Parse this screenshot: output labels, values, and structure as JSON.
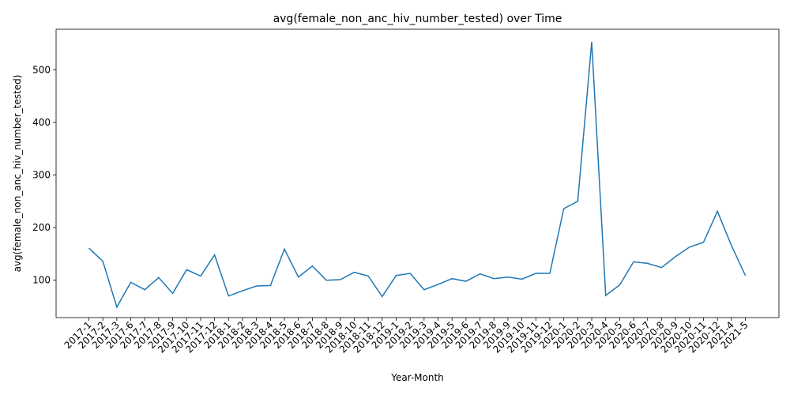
{
  "chart_data": {
    "type": "line",
    "title": "avg(female_non_anc_hiv_number_tested) over Time",
    "xlabel": "Year-Month",
    "ylabel": "avg(female_non_anc_hiv_number_tested)",
    "ylim": [
      29,
      577
    ],
    "yticks": [
      100,
      200,
      300,
      400,
      500
    ],
    "grid": false,
    "legend": "none",
    "line_color": "#1f77b4",
    "categories": [
      "2017-1",
      "2017-2",
      "2017-3",
      "2017-6",
      "2017-7",
      "2017-8",
      "2017-9",
      "2017-10",
      "2017-11",
      "2017-12",
      "2018-1",
      "2018-2",
      "2018-3",
      "2018-4",
      "2018-5",
      "2018-6",
      "2018-7",
      "2018-8",
      "2018-9",
      "2018-10",
      "2018-11",
      "2018-12",
      "2019-1",
      "2019-2",
      "2019-3",
      "2019-4",
      "2019-5",
      "2019-6",
      "2019-7",
      "2019-8",
      "2019-9",
      "2019-10",
      "2019-11",
      "2019-12",
      "2020-1",
      "2020-2",
      "2020-3",
      "2020-4",
      "2020-5",
      "2020-6",
      "2020-7",
      "2020-8",
      "2020-9",
      "2020-10",
      "2020-11",
      "2020-12",
      "2021-4",
      "2021-5"
    ],
    "series": [
      {
        "values": [
          161,
          136,
          49,
          96,
          82,
          105,
          75,
          120,
          108,
          148,
          70,
          80,
          89,
          90,
          159,
          106,
          127,
          100,
          101,
          115,
          108,
          69,
          109,
          113,
          82,
          92,
          103,
          98,
          112,
          103,
          106,
          102,
          113,
          113,
          236,
          250,
          553,
          71,
          91,
          135,
          132,
          124,
          145,
          163,
          172,
          231,
          166,
          109
        ]
      }
    ]
  }
}
